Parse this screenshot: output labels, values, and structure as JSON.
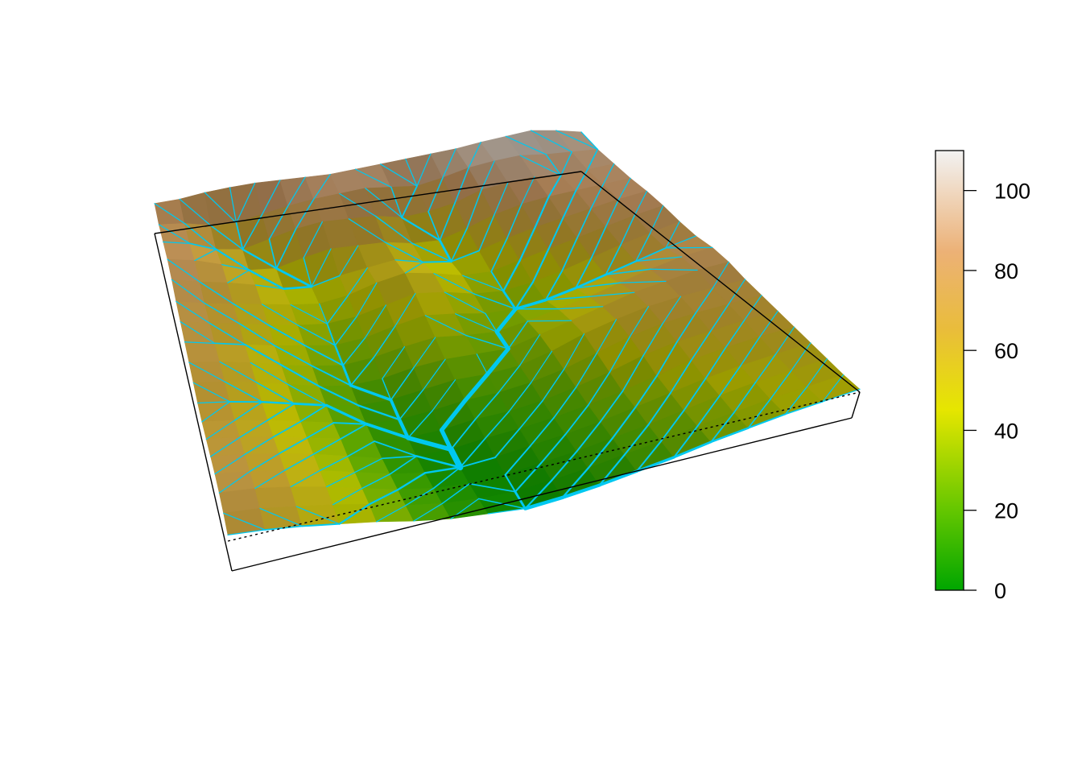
{
  "chart_data": {
    "type": "heatmap",
    "subtype": "3d-perspective-surface",
    "title": "",
    "xlabel": "",
    "ylabel": "",
    "zlabel": "",
    "grid_rows": 18,
    "grid_cols": 18,
    "z": [
      [
        85,
        86,
        90,
        92,
        93,
        92,
        91,
        90,
        92,
        94,
        96,
        98,
        100,
        104,
        107,
        110,
        105,
        98
      ],
      [
        82,
        78,
        70,
        68,
        74,
        80,
        84,
        86,
        88,
        84,
        80,
        86,
        94,
        98,
        100,
        96,
        94,
        92
      ],
      [
        84,
        76,
        62,
        56,
        64,
        72,
        76,
        74,
        72,
        64,
        66,
        72,
        84,
        88,
        90,
        86,
        88,
        90
      ],
      [
        86,
        78,
        66,
        52,
        48,
        56,
        62,
        60,
        58,
        50,
        48,
        58,
        70,
        78,
        82,
        84,
        86,
        88
      ],
      [
        84,
        74,
        66,
        56,
        44,
        40,
        48,
        52,
        56,
        46,
        40,
        48,
        58,
        66,
        72,
        78,
        84,
        88
      ],
      [
        80,
        70,
        62,
        54,
        46,
        40,
        44,
        54,
        60,
        52,
        42,
        40,
        48,
        56,
        64,
        72,
        80,
        86
      ],
      [
        78,
        68,
        60,
        50,
        42,
        36,
        38,
        46,
        54,
        48,
        38,
        34,
        38,
        46,
        56,
        66,
        74,
        82
      ],
      [
        76,
        66,
        56,
        46,
        38,
        30,
        32,
        40,
        46,
        40,
        32,
        30,
        34,
        42,
        52,
        62,
        72,
        80
      ],
      [
        74,
        66,
        56,
        44,
        34,
        26,
        28,
        34,
        38,
        32,
        28,
        34,
        42,
        50,
        60,
        70,
        78,
        82
      ],
      [
        72,
        64,
        54,
        42,
        30,
        22,
        22,
        28,
        30,
        28,
        26,
        36,
        46,
        56,
        66,
        72,
        78,
        80
      ],
      [
        70,
        62,
        52,
        40,
        28,
        18,
        16,
        20,
        24,
        22,
        24,
        34,
        48,
        58,
        66,
        70,
        72,
        74
      ],
      [
        70,
        62,
        52,
        40,
        28,
        16,
        12,
        14,
        18,
        18,
        22,
        30,
        42,
        54,
        62,
        66,
        68,
        70
      ],
      [
        72,
        64,
        54,
        42,
        30,
        16,
        10,
        10,
        14,
        14,
        18,
        26,
        36,
        48,
        56,
        60,
        64,
        66
      ],
      [
        74,
        66,
        56,
        44,
        30,
        16,
        8,
        6,
        10,
        12,
        16,
        22,
        30,
        40,
        50,
        56,
        60,
        62
      ],
      [
        76,
        68,
        58,
        46,
        32,
        18,
        8,
        4,
        6,
        10,
        14,
        20,
        28,
        36,
        44,
        50,
        54,
        58
      ],
      [
        76,
        70,
        60,
        48,
        34,
        20,
        10,
        4,
        4,
        8,
        12,
        18,
        24,
        32,
        40,
        46,
        50,
        54
      ],
      [
        74,
        68,
        58,
        48,
        36,
        22,
        12,
        6,
        3,
        6,
        10,
        16,
        22,
        30,
        36,
        42,
        46,
        50
      ],
      [
        70,
        64,
        56,
        46,
        36,
        24,
        14,
        8,
        2,
        4,
        8,
        14,
        20,
        28,
        34,
        40,
        44,
        48
      ]
    ],
    "zlim": [
      0,
      110
    ],
    "colorbar": {
      "ticks": [
        0,
        20,
        40,
        60,
        80,
        100
      ],
      "labels": [
        "0",
        "20",
        "40",
        "60",
        "80",
        "100"
      ],
      "colors": [
        "#00a600",
        "#63c600",
        "#e6e600",
        "#e9bd3a",
        "#ecb176",
        "#f2f2f2"
      ]
    },
    "flow_network": {
      "color": "#00c8f0",
      "description_free": true
    },
    "grid": false,
    "legend_position": "right"
  }
}
